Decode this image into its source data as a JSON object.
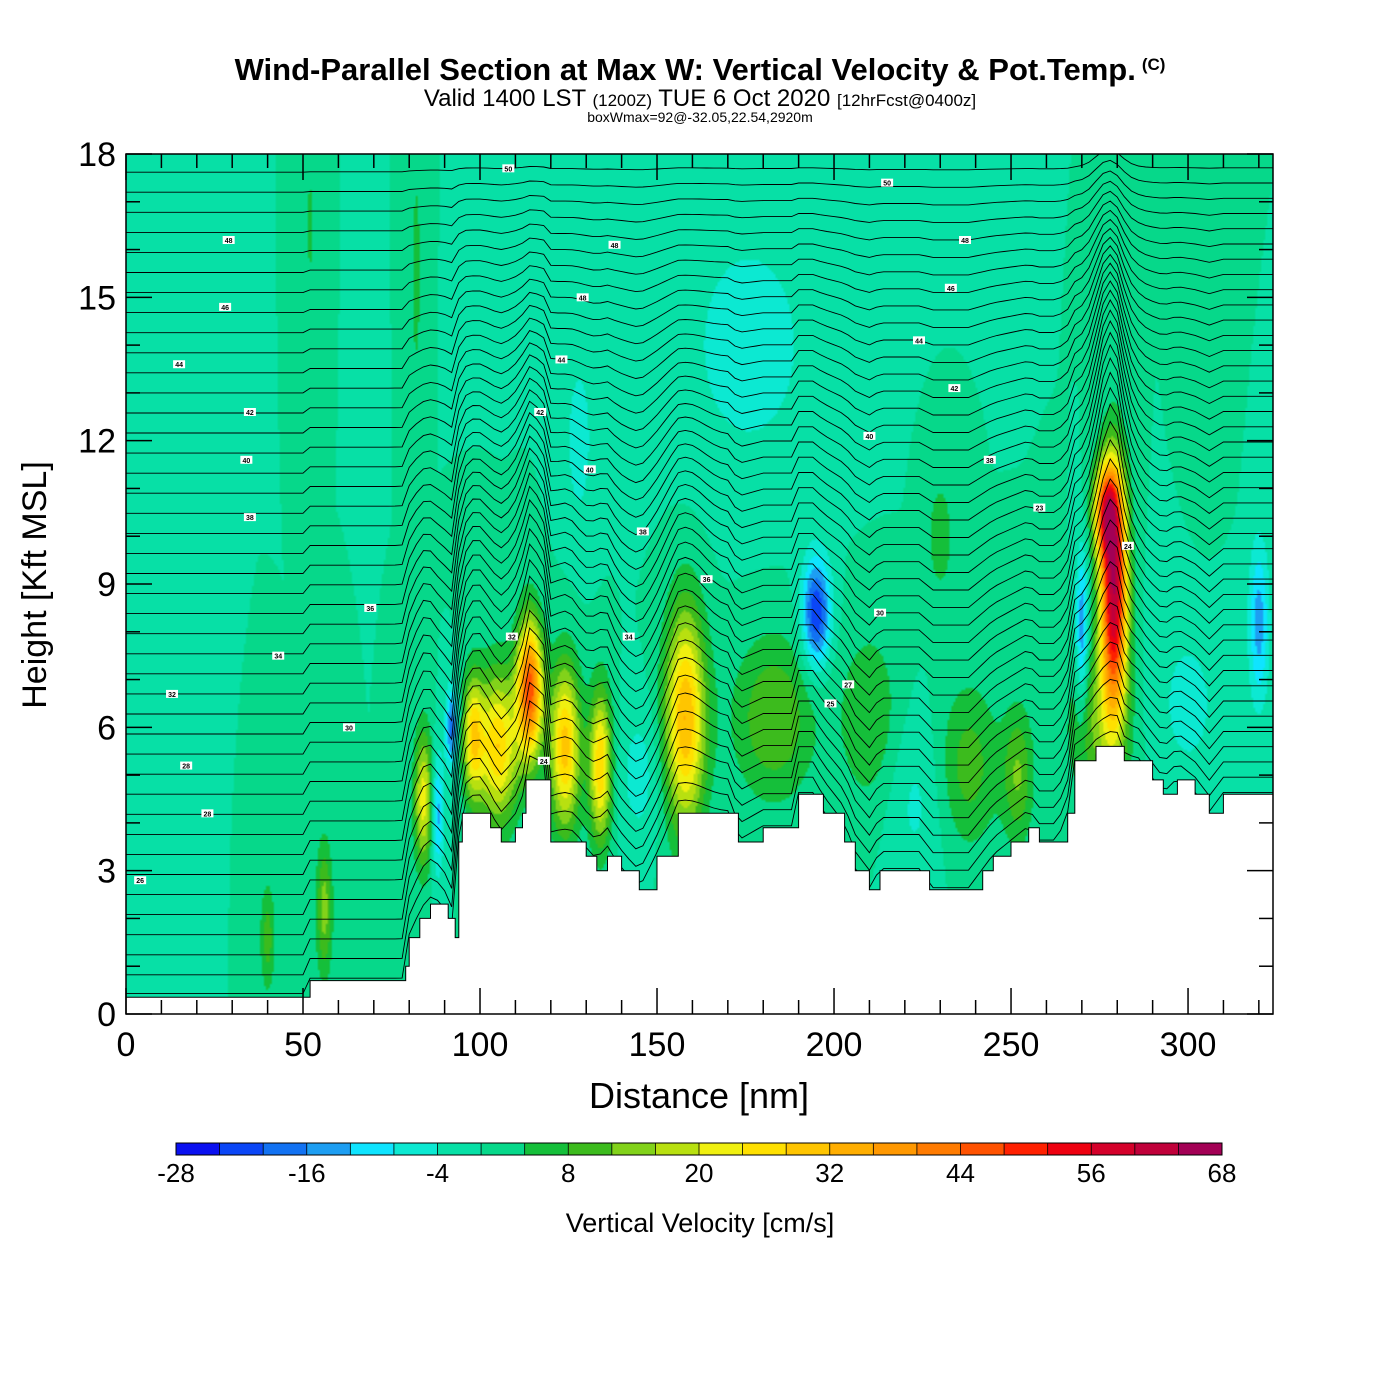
{
  "header": {
    "title": "Wind-Parallel Section at Max W: Vertical Velocity & Pot.Temp.",
    "copyright": "(C)",
    "valid_prefix": "Valid 1400 LST",
    "valid_utc": "(1200Z)",
    "valid_date": "TUE 6 Oct 2020",
    "forecast": "[12hrFcst@0400z]",
    "box_wmax": "boxWmax=92@-32.05,22.54,2920m"
  },
  "chart_data": {
    "type": "heatmap",
    "xlabel": "Distance [nm]",
    "ylabel": "Height [Kft MSL]",
    "xlim": [
      0,
      324
    ],
    "ylim": [
      0,
      18
    ],
    "x_ticks": [
      0,
      50,
      100,
      150,
      200,
      250,
      300
    ],
    "y_ticks": [
      0,
      3,
      6,
      9,
      12,
      15,
      18
    ],
    "colorbar": {
      "label": "Vertical Velocity [cm/s]",
      "tick_labels": [
        "-28",
        "-16",
        "-4",
        "8",
        "20",
        "32",
        "44",
        "56",
        "68"
      ],
      "bins": [
        -28,
        -24,
        -20,
        -16,
        -12,
        -8,
        -4,
        0,
        4,
        8,
        12,
        16,
        20,
        24,
        28,
        32,
        36,
        40,
        44,
        48,
        52,
        56,
        60,
        64,
        68
      ],
      "colors": [
        "#0a10f0",
        "#0b46f6",
        "#1272f2",
        "#1d9ef2",
        "#0fe4ff",
        "#0ce9d2",
        "#07e0a6",
        "#06d88a",
        "#15bf3a",
        "#3cbb1d",
        "#82d21a",
        "#b8e010",
        "#f0f010",
        "#ffe000",
        "#ffc500",
        "#ffae00",
        "#ff9800",
        "#ff7b00",
        "#ff5200",
        "#ff2000",
        "#ee0010",
        "#d4002a",
        "#c0003a",
        "#a30055"
      ]
    },
    "terrain_kft": [
      [
        0,
        0.35
      ],
      [
        17,
        0.35
      ],
      [
        34,
        0.35
      ],
      [
        51,
        0.35
      ],
      [
        52,
        0.7
      ],
      [
        78,
        0.7
      ],
      [
        79,
        1.0
      ],
      [
        80,
        1.6
      ],
      [
        83,
        2.0
      ],
      [
        86,
        2.3
      ],
      [
        89,
        2.3
      ],
      [
        91,
        2.0
      ],
      [
        93,
        1.6
      ],
      [
        94,
        3.6
      ],
      [
        95,
        4.2
      ],
      [
        101,
        4.2
      ],
      [
        103,
        3.9
      ],
      [
        106,
        3.6
      ],
      [
        110,
        3.9
      ],
      [
        112,
        4.2
      ],
      [
        113,
        4.9
      ],
      [
        118,
        4.9
      ],
      [
        120,
        3.6
      ],
      [
        127,
        3.6
      ],
      [
        130,
        3.3
      ],
      [
        133,
        3.0
      ],
      [
        136,
        3.3
      ],
      [
        140,
        3.0
      ],
      [
        145,
        2.6
      ],
      [
        150,
        3.3
      ],
      [
        156,
        4.2
      ],
      [
        170,
        4.2
      ],
      [
        173,
        3.6
      ],
      [
        180,
        3.9
      ],
      [
        188,
        3.9
      ],
      [
        190,
        4.6
      ],
      [
        194,
        4.6
      ],
      [
        197,
        4.2
      ],
      [
        203,
        3.6
      ],
      [
        206,
        3.0
      ],
      [
        210,
        2.6
      ],
      [
        213,
        3.0
      ],
      [
        225,
        3.0
      ],
      [
        227,
        2.6
      ],
      [
        238,
        2.6
      ],
      [
        242,
        3.0
      ],
      [
        245,
        3.3
      ],
      [
        250,
        3.6
      ],
      [
        255,
        3.9
      ],
      [
        258,
        3.6
      ],
      [
        263,
        3.6
      ],
      [
        266,
        4.2
      ],
      [
        268,
        5.3
      ],
      [
        274,
        5.6
      ],
      [
        280,
        5.6
      ],
      [
        282,
        5.3
      ],
      [
        286,
        5.3
      ],
      [
        290,
        4.9
      ],
      [
        293,
        4.6
      ],
      [
        297,
        4.9
      ],
      [
        302,
        4.6
      ],
      [
        306,
        4.2
      ],
      [
        310,
        4.6
      ],
      [
        324,
        4.6
      ]
    ],
    "vertical_velocity_cells": [
      {
        "x": 114,
        "y": 6.8,
        "peak": 46,
        "sx": 2.5,
        "sy": 1.0
      },
      {
        "x": 105,
        "y": 5.6,
        "peak": 28,
        "sx": 4.0,
        "sy": 1.1
      },
      {
        "x": 98,
        "y": 5.8,
        "peak": 24,
        "sx": 2.0,
        "sy": 0.9
      },
      {
        "x": 124,
        "y": 5.6,
        "peak": 30,
        "sx": 3.0,
        "sy": 1.2
      },
      {
        "x": 134,
        "y": 5.2,
        "peak": 28,
        "sx": 2.2,
        "sy": 1.1
      },
      {
        "x": 158,
        "y": 6.2,
        "peak": 32,
        "sx": 4.0,
        "sy": 1.6
      },
      {
        "x": 279,
        "y": 8.8,
        "peak": 62,
        "sx": 2.6,
        "sy": 1.7
      },
      {
        "x": 277,
        "y": 10.5,
        "peak": 40,
        "sx": 2.5,
        "sy": 0.7
      },
      {
        "x": 84,
        "y": 4.5,
        "peak": 22,
        "sx": 1.8,
        "sy": 1.0
      },
      {
        "x": 56,
        "y": 2.2,
        "peak": 14,
        "sx": 1.6,
        "sy": 1.0
      },
      {
        "x": 40,
        "y": 1.6,
        "peak": 10,
        "sx": 1.5,
        "sy": 0.8
      },
      {
        "x": 183,
        "y": 6.2,
        "peak": 12,
        "sx": 8.0,
        "sy": 1.2
      },
      {
        "x": 210,
        "y": 6.2,
        "peak": 8,
        "sx": 6.0,
        "sy": 1.3
      },
      {
        "x": 238,
        "y": 5.2,
        "peak": 10,
        "sx": 6.0,
        "sy": 1.2
      },
      {
        "x": 252,
        "y": 5.0,
        "peak": 12,
        "sx": 3.0,
        "sy": 1.0
      },
      {
        "x": 275,
        "y": 6.0,
        "peak": 12,
        "sx": 6.0,
        "sy": 1.2
      },
      {
        "x": 195,
        "y": 8.4,
        "peak": -24,
        "sx": 2.8,
        "sy": 0.8
      },
      {
        "x": 92,
        "y": 6.0,
        "peak": -18,
        "sx": 1.2,
        "sy": 0.6
      },
      {
        "x": 88,
        "y": 4.2,
        "peak": -14,
        "sx": 1.2,
        "sy": 0.9
      },
      {
        "x": 270,
        "y": 8.0,
        "peak": -16,
        "sx": 1.2,
        "sy": 1.2
      },
      {
        "x": 320,
        "y": 8.2,
        "peak": -14,
        "sx": 2.0,
        "sy": 1.2
      },
      {
        "x": 176,
        "y": 14.0,
        "peak": -6,
        "sx": 14.0,
        "sy": 2.0
      },
      {
        "x": 128,
        "y": 12.0,
        "peak": -6,
        "sx": 3.0,
        "sy": 1.4
      },
      {
        "x": 145,
        "y": 5.0,
        "peak": -6,
        "sx": 4.0,
        "sy": 1.0
      },
      {
        "x": 223,
        "y": 4.5,
        "peak": -5,
        "sx": 6.0,
        "sy": 1.3
      },
      {
        "x": 300,
        "y": 6.5,
        "peak": -5,
        "sx": 8.0,
        "sy": 1.5
      },
      {
        "x": 8,
        "y": 5.0,
        "peak": -3,
        "sx": 3.0,
        "sy": 2.0
      },
      {
        "x": 82,
        "y": 15.5,
        "peak": 6,
        "sx": 1.0,
        "sy": 1.8
      },
      {
        "x": 52,
        "y": 16.5,
        "peak": 5,
        "sx": 1.0,
        "sy": 1.2
      },
      {
        "x": 305,
        "y": 12.0,
        "peak": 4,
        "sx": 3.0,
        "sy": 1.2
      },
      {
        "x": 230,
        "y": 10.0,
        "peak": 6,
        "sx": 3.0,
        "sy": 1.0
      }
    ],
    "theta_label_values": [
      "50",
      "50",
      "48",
      "48",
      "48",
      "48",
      "46",
      "46",
      "44",
      "44",
      "44",
      "42",
      "42",
      "42",
      "40",
      "40",
      "40",
      "38",
      "38",
      "38",
      "36",
      "36",
      "34",
      "34",
      "32",
      "32",
      "30",
      "30",
      "28",
      "28",
      "27",
      "26",
      "25",
      "24",
      "24",
      "23"
    ],
    "theta_label_positions": [
      [
        108,
        17.7
      ],
      [
        215,
        17.4
      ],
      [
        29,
        16.2
      ],
      [
        138,
        16.1
      ],
      [
        237,
        16.2
      ],
      [
        129,
        15.0
      ],
      [
        28,
        14.8
      ],
      [
        233,
        15.2
      ],
      [
        15,
        13.6
      ],
      [
        123,
        13.7
      ],
      [
        224,
        14.1
      ],
      [
        35,
        12.6
      ],
      [
        234,
        13.1
      ],
      [
        117,
        12.6
      ],
      [
        34,
        11.6
      ],
      [
        131,
        11.4
      ],
      [
        210,
        12.1
      ],
      [
        35,
        10.4
      ],
      [
        146,
        10.1
      ],
      [
        244,
        11.6
      ],
      [
        69,
        8.5
      ],
      [
        164,
        9.1
      ],
      [
        43,
        7.5
      ],
      [
        142,
        7.9
      ],
      [
        13,
        6.7
      ],
      [
        109,
        7.9
      ],
      [
        63,
        6.0
      ],
      [
        213,
        8.4
      ],
      [
        17,
        5.2
      ],
      [
        23,
        4.2
      ],
      [
        204,
        6.9
      ],
      [
        4,
        2.8
      ],
      [
        199,
        6.5
      ],
      [
        118,
        5.3
      ],
      [
        283,
        9.8
      ],
      [
        258,
        10.6
      ]
    ]
  }
}
